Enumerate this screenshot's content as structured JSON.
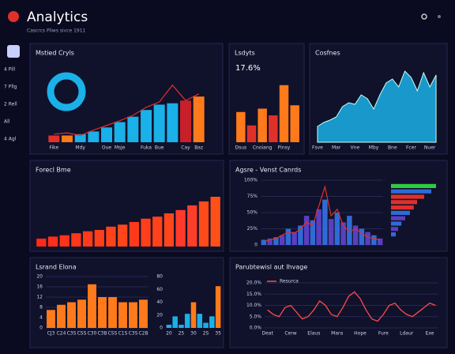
{
  "header": {
    "title": "Analytics",
    "subtitle": "Cascrcs Pliws sivce 1911"
  },
  "sidebar": {
    "items": [
      "4 Pill",
      "7 Pllg",
      "2 Rell",
      "All",
      "4 Agl"
    ]
  },
  "chart_data": [
    {
      "type": "bar",
      "title": "Mstied Cryls",
      "ylim": [
        0,
        100
      ],
      "categories": [
        "Fike",
        null,
        "Mdy",
        null,
        "Oue",
        "Msje",
        null,
        "Fuka",
        "Bue",
        null,
        "Cay",
        "Baz"
      ],
      "values": [
        10,
        10,
        12,
        16,
        22,
        30,
        38,
        48,
        56,
        58,
        62,
        68
      ],
      "colors": [
        "#e0302a",
        "#ff7a1a",
        "#1ab0e8",
        "#1ab0e8",
        "#1ab0e8",
        "#1ab0e8",
        "#1ab0e8",
        "#1ab0e8",
        "#1ab0e8",
        "#1ab0e8",
        "#c8202a",
        "#ff7a1a"
      ],
      "line": {
        "color": "#e0302a",
        "values": [
          12,
          14,
          10,
          18,
          25,
          32,
          40,
          52,
          60,
          85,
          62,
          72
        ]
      }
    },
    {
      "type": "bar",
      "title": "Lsdyts",
      "annotation": "17.6%",
      "ylim": [
        0,
        100
      ],
      "categories": [
        "Dsus",
        null,
        "Cnoiang",
        null,
        "Pinsy",
        null
      ],
      "values": [
        45,
        25,
        50,
        40,
        85,
        55
      ],
      "colors": [
        "#ff7a1a",
        "#e0302a",
        "#ff7a1a",
        "#e0302a",
        "#ff7a1a",
        "#ff7a1a"
      ]
    },
    {
      "type": "area",
      "title": "Cosfnes",
      "ylim": [
        0,
        100
      ],
      "color": "#1ab0e8",
      "categories": [
        "Fsve",
        null,
        null,
        "Mar",
        null,
        null,
        "Vne",
        null,
        null,
        "Mby",
        null,
        null,
        "Bne",
        null,
        null,
        "Fcer",
        null,
        null,
        "Nuer",
        null
      ],
      "values": [
        20,
        25,
        28,
        32,
        45,
        50,
        48,
        60,
        55,
        42,
        60,
        75,
        80,
        70,
        90,
        82,
        65,
        88,
        70,
        85
      ]
    },
    {
      "type": "bar",
      "title": "Forecl Bme",
      "ylim": [
        0,
        100
      ],
      "categories": [
        null,
        null,
        null,
        null,
        null,
        null,
        null,
        null,
        null,
        null,
        null,
        null,
        null,
        null,
        null,
        null
      ],
      "values": [
        12,
        15,
        17,
        20,
        23,
        25,
        30,
        33,
        37,
        42,
        45,
        50,
        55,
        62,
        68,
        75
      ],
      "colors": [
        "#ff2a1a",
        "#ff2e1a",
        "#ff321a",
        "#ff361a",
        "#ff3a1a",
        "#ff3e1a",
        "#ff421a",
        "#ff461a",
        "#ff3a1a",
        "#ff3e1a",
        "#ff421a",
        "#ff461a",
        "#ff3a2a",
        "#ff3e2a",
        "#ff4a1a",
        "#ff501a"
      ]
    },
    {
      "type": "bar",
      "title": "Agsre - Venst Canrds",
      "ylim": [
        0,
        100
      ],
      "grid": true,
      "yticks": [
        {
          "value": 0,
          "label": "0"
        },
        {
          "value": 25,
          "label": "25%"
        },
        {
          "value": 50,
          "label": "50%"
        },
        {
          "value": 75,
          "label": "75%"
        },
        {
          "value": 100,
          "label": "100%"
        }
      ],
      "categories": [
        null,
        null,
        null,
        null,
        null,
        null,
        null,
        null,
        null,
        null,
        null,
        null,
        null,
        null,
        null,
        null,
        null,
        null,
        null,
        null
      ],
      "values": [
        8,
        10,
        12,
        15,
        25,
        20,
        30,
        45,
        38,
        55,
        70,
        40,
        50,
        35,
        45,
        30,
        25,
        20,
        15,
        10
      ],
      "colors": [
        "#2e6bd6",
        "#5a3fc0",
        "#2e6bd6",
        "#5a3fc0",
        "#2e6bd6",
        "#5a3fc0",
        "#2e6bd6",
        "#5a3fc0",
        "#2e6bd6",
        "#5a3fc0",
        "#2e6bd6",
        "#5a3fc0",
        "#2e6bd6",
        "#5a3fc0",
        "#2e6bd6",
        "#5a3fc0",
        "#2e6bd6",
        "#5a3fc0",
        "#2e6bd6",
        "#5a3fc0"
      ],
      "line": {
        "color": "#e0302a",
        "values": [
          5,
          8,
          10,
          15,
          20,
          18,
          25,
          35,
          30,
          60,
          90,
          45,
          55,
          30,
          20,
          25,
          18,
          12,
          10,
          8
        ]
      }
    },
    {
      "type": "hbar",
      "xlim": [
        0,
        100
      ],
      "values": [
        95,
        85,
        70,
        55,
        48,
        40,
        30,
        22,
        15,
        10
      ],
      "colors": [
        "#2ecc40",
        "#2e6bd6",
        "#e0302a",
        "#e0302a",
        "#e0302a",
        "#2e6bd6",
        "#5a3fc0",
        "#2e6bd6",
        "#5a3fc0",
        "#2e6bd6"
      ]
    },
    {
      "type": "bar",
      "title": "Lsrand Elona",
      "ylim": [
        0,
        20
      ],
      "grid": true,
      "yticks": [
        0,
        4,
        8,
        12,
        16,
        20
      ],
      "color": "#ff7a1a",
      "categories": [
        "CJ3",
        "C24",
        "C3S",
        "CSS",
        "C30",
        "C3B",
        "CSS",
        "C1S",
        "C3S",
        "C2B"
      ],
      "values": [
        7,
        9,
        10,
        11,
        17,
        12,
        12,
        10,
        10,
        11
      ]
    },
    {
      "type": "bar",
      "ylim": [
        0,
        80
      ],
      "yticks": [
        0,
        20,
        40,
        60,
        80
      ],
      "categories": [
        "20",
        null,
        "25",
        null,
        "30",
        null,
        "2S",
        null,
        "35"
      ],
      "values": [
        5,
        18,
        5,
        22,
        40,
        22,
        8,
        18,
        65
      ],
      "colors": [
        "#1ab0e8",
        "#1ab0e8",
        "#1ab0e8",
        "#1ab0e8",
        "#ff7a1a",
        "#1ab0e8",
        "#1ab0e8",
        "#1ab0e8",
        "#ff7a1a"
      ]
    },
    {
      "type": "line",
      "title": "Parubtewisl aut Ihvage",
      "ylim": [
        0,
        20
      ],
      "grid": true,
      "yticks": [
        {
          "value": 0,
          "label": "0.0%"
        },
        {
          "value": 5,
          "label": "5.0%"
        },
        {
          "value": 10,
          "label": "10.0%"
        },
        {
          "value": 15,
          "label": "15.0%"
        },
        {
          "value": 20,
          "label": "20.0%"
        }
      ],
      "categories": [
        "Deat",
        null,
        null,
        null,
        "Cerw",
        null,
        null,
        null,
        "Elaus",
        null,
        null,
        null,
        "Mara",
        null,
        null,
        null,
        "Hope",
        null,
        null,
        null,
        "Fure",
        null,
        null,
        null,
        "Ldaur",
        null,
        null,
        null,
        "Exe",
        null
      ],
      "series": [
        {
          "name": "Resurca",
          "color": "#ff4a4a",
          "values": [
            8,
            6,
            5,
            9,
            10,
            7,
            4,
            5,
            8,
            12,
            10,
            6,
            5,
            9,
            14,
            16,
            13,
            8,
            4,
            3,
            6,
            10,
            11,
            8,
            6,
            5,
            7,
            9,
            11,
            10
          ]
        }
      ]
    }
  ]
}
